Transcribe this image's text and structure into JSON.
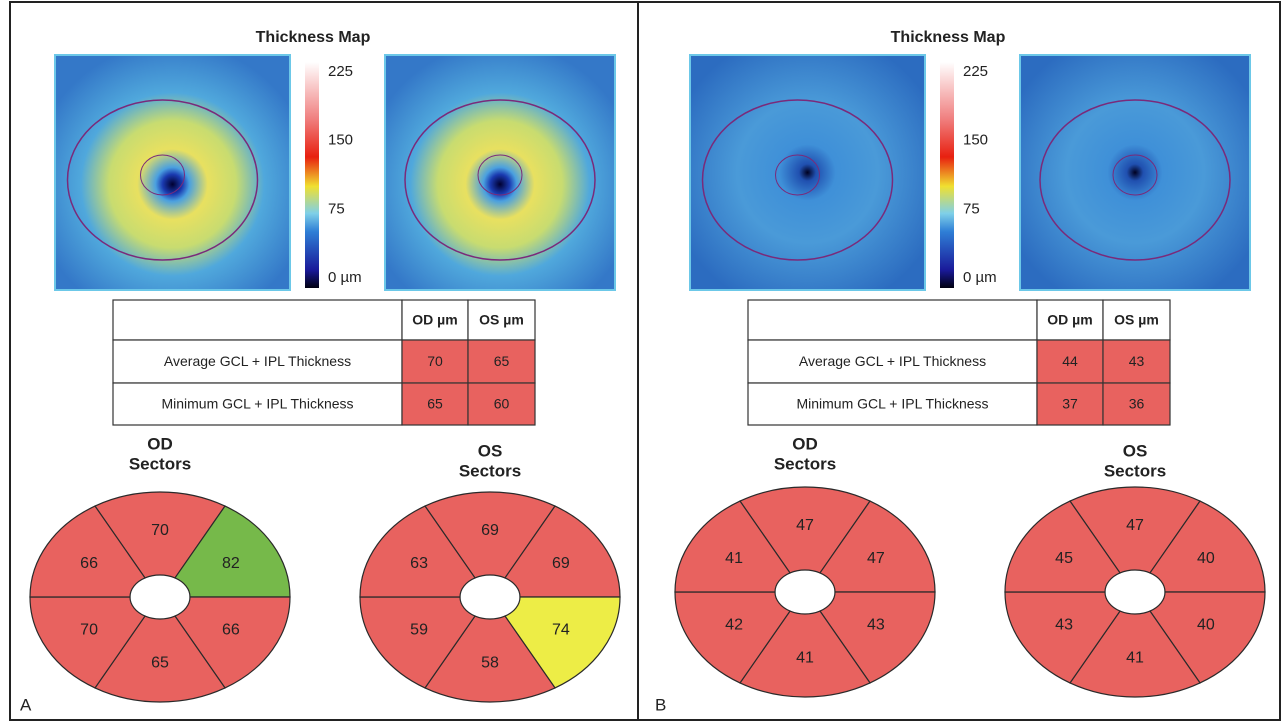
{
  "panels": [
    {
      "label": "A",
      "title": "Thickness Map",
      "colorbar_labels": [
        "225",
        "150",
        "75",
        "0 µm"
      ],
      "table": {
        "headers": [
          "OD µm",
          "OS µm"
        ],
        "rows": [
          [
            "Average GCL + IPL Thickness",
            "70",
            "65"
          ],
          [
            "Minimum GCL + IPL Thickness",
            "65",
            "60"
          ]
        ]
      },
      "sectors": [
        {
          "eye": "OD",
          "caption": "Sectors",
          "values": [
            "70",
            "82",
            "66",
            "65",
            "70",
            "66"
          ],
          "colors": [
            "#e8625f",
            "#76b94a",
            "#e8625f",
            "#e8625f",
            "#e8625f",
            "#e8625f"
          ]
        },
        {
          "eye": "OS",
          "caption": "Sectors",
          "values": [
            "69",
            "69",
            "74",
            "58",
            "59",
            "63"
          ],
          "colors": [
            "#e8625f",
            "#e8625f",
            "#eded46",
            "#e8625f",
            "#e8625f",
            "#e8625f"
          ]
        }
      ]
    },
    {
      "label": "B",
      "title": "Thickness Map",
      "colorbar_labels": [
        "225",
        "150",
        "75",
        "0 µm"
      ],
      "table": {
        "headers": [
          "OD µm",
          "OS µm"
        ],
        "rows": [
          [
            "Average GCL + IPL Thickness",
            "44",
            "43"
          ],
          [
            "Minimum GCL + IPL Thickness",
            "37",
            "36"
          ]
        ]
      },
      "sectors": [
        {
          "eye": "OD",
          "caption": "Sectors",
          "values": [
            "47",
            "47",
            "43",
            "41",
            "42",
            "41"
          ],
          "colors": [
            "#e8625f",
            "#e8625f",
            "#e8625f",
            "#e8625f",
            "#e8625f",
            "#e8625f"
          ]
        },
        {
          "eye": "OS",
          "caption": "Sectors",
          "values": [
            "47",
            "40",
            "40",
            "41",
            "43",
            "45"
          ],
          "colors": [
            "#e8625f",
            "#e8625f",
            "#e8625f",
            "#e8625f",
            "#e8625f",
            "#e8625f"
          ]
        }
      ]
    }
  ]
}
